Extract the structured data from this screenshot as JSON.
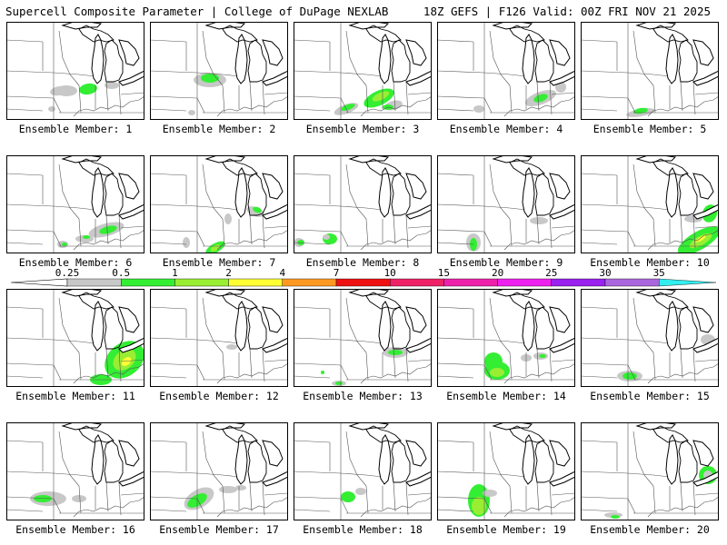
{
  "header": {
    "title": "Supercell Composite Parameter | College of DuPage NEXLAB",
    "valid": "18Z GEFS | F126 Valid: 00Z FRI NOV 21 2025"
  },
  "colorbar": {
    "levels": [
      "0.25",
      "0.5",
      "1",
      "2",
      "4",
      "7",
      "10",
      "15",
      "20",
      "25",
      "30",
      "35"
    ],
    "colors": [
      "#c8c8c8",
      "#33ee33",
      "#99ee33",
      "#ffff33",
      "#ff9922",
      "#ee1111",
      "#ee2266",
      "#ee22aa",
      "#ee22ee",
      "#9922ee",
      "#aa66dd",
      "#33eeee"
    ]
  },
  "panels": [
    {
      "label": "Ensemble Member: 1"
    },
    {
      "label": "Ensemble Member: 2"
    },
    {
      "label": "Ensemble Member: 3"
    },
    {
      "label": "Ensemble Member: 4"
    },
    {
      "label": "Ensemble Member: 5"
    },
    {
      "label": "Ensemble Member: 6"
    },
    {
      "label": "Ensemble Member: 7"
    },
    {
      "label": "Ensemble Member: 8"
    },
    {
      "label": "Ensemble Member: 9"
    },
    {
      "label": "Ensemble Member: 10"
    },
    {
      "label": "Ensemble Member: 11"
    },
    {
      "label": "Ensemble Member: 12"
    },
    {
      "label": "Ensemble Member: 13"
    },
    {
      "label": "Ensemble Member: 14"
    },
    {
      "label": "Ensemble Member: 15"
    },
    {
      "label": "Ensemble Member: 16"
    },
    {
      "label": "Ensemble Member: 17"
    },
    {
      "label": "Ensemble Member: 18"
    },
    {
      "label": "Ensemble Member: 19"
    },
    {
      "label": "Ensemble Member: 20"
    }
  ]
}
